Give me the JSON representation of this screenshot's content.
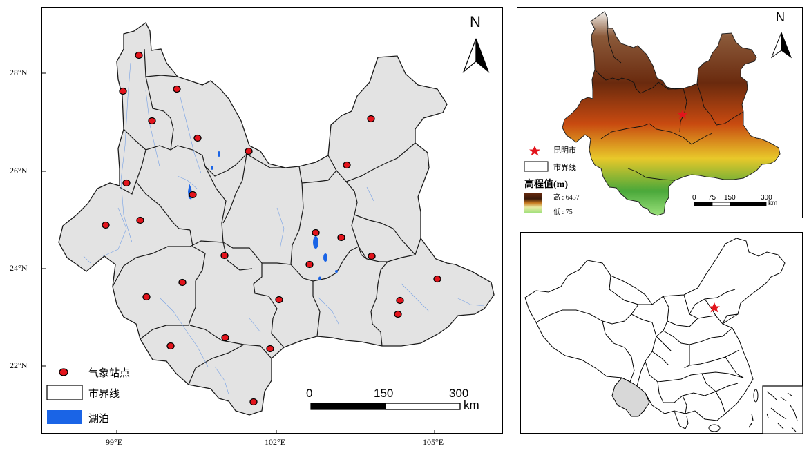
{
  "main_map": {
    "lat_ticks": [
      "28°N",
      "26°N",
      "24°N",
      "22°N"
    ],
    "lon_ticks": [
      "99°E",
      "102°E",
      "105°E"
    ],
    "north_label": "N",
    "scale": {
      "ticks": [
        "0",
        "150",
        "300"
      ],
      "unit": "km"
    },
    "legend": {
      "station_label": "气象站点",
      "boundary_label": "市界线",
      "lake_label": "湖泊"
    },
    "colors": {
      "land": "#e3e3e3",
      "lake": "#1a64e6",
      "station": "#e3141c",
      "boundary": "#1a1a1a"
    }
  },
  "elevation_map": {
    "north_label": "N",
    "legend": {
      "capital_label": "昆明市",
      "boundary_label": "市界线",
      "elev_title": "高程值(m)",
      "high_label": "高 : 6457",
      "low_label": "低 : 75"
    },
    "scale": {
      "ticks": [
        "0",
        "75",
        "150",
        "300"
      ],
      "unit": "km"
    }
  },
  "china_map": {
    "highlight": "Yunnan",
    "marker": "Beijing"
  }
}
